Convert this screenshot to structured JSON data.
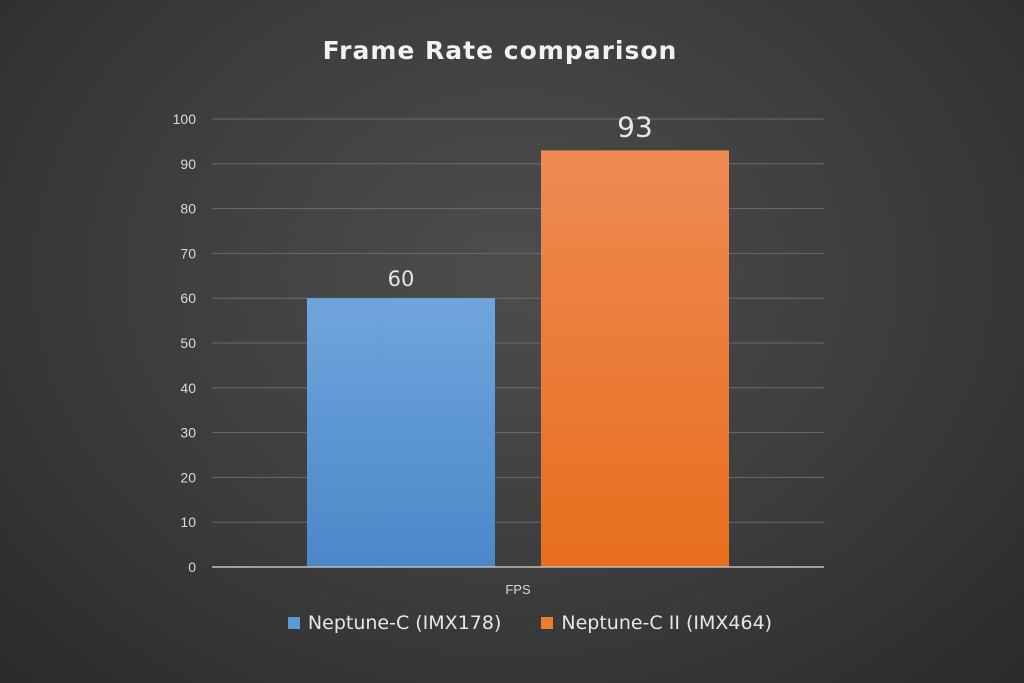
{
  "chart_data": {
    "type": "bar",
    "title": "Frame Rate comparison",
    "categories": [
      "FPS"
    ],
    "series": [
      {
        "name": "Neptune-C (IMX178)",
        "values": [
          60
        ],
        "color": "#5b9bd5"
      },
      {
        "name": "Neptune-C II (IMX464)",
        "values": [
          93
        ],
        "color": "#ed7d31"
      }
    ],
    "ylim": [
      0,
      100
    ],
    "yticks": [
      0,
      10,
      20,
      30,
      40,
      50,
      60,
      70,
      80,
      90,
      100
    ],
    "grid": true,
    "legend_position": "bottom",
    "data_labels": [
      "60",
      "93"
    ]
  }
}
